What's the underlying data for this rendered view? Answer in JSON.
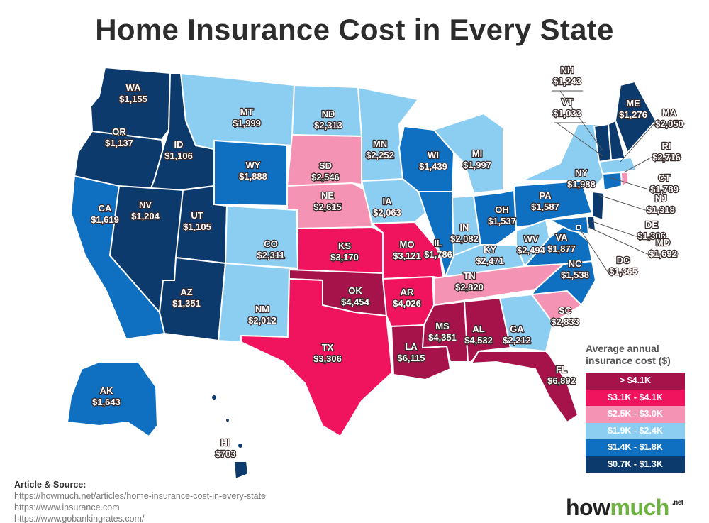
{
  "title": "Home Insurance Cost in Every State",
  "legend": {
    "title_line1": "Average annual",
    "title_line2": "insurance cost ($)",
    "items": [
      {
        "label": "> $4.1K",
        "color": "#a6124a"
      },
      {
        "label": "$3.1K - $4.1K",
        "color": "#f0145f"
      },
      {
        "label": "$2.5K - $3.0K",
        "color": "#f493b4"
      },
      {
        "label": "$1.9K - $2.4K",
        "color": "#8ccdf2"
      },
      {
        "label": "$1.4K - $1.8K",
        "color": "#0f6fc0"
      },
      {
        "label": "$0.7K - $1.3K",
        "color": "#0c3a6d"
      }
    ]
  },
  "source": {
    "heading": "Article & Source:",
    "links": [
      "https://howmuch.net/articles/home-insurance-cost-in-every-state",
      "https://www.insurance.com",
      "https://www.gobankingrates.com/"
    ]
  },
  "logo": {
    "how": "how",
    "much": "much",
    "net": ".net"
  },
  "chart_data": {
    "type": "choropleth",
    "title": "Home Insurance Cost in Every State",
    "legend_title": "Average annual insurance cost ($)",
    "bins": [
      {
        "label": "> $4.1K",
        "min": 4100,
        "color": "#a6124a"
      },
      {
        "label": "$3.1K - $4.1K",
        "min": 3100,
        "max": 4100,
        "color": "#f0145f"
      },
      {
        "label": "$2.5K - $3.0K",
        "min": 2500,
        "max": 3000,
        "color": "#f493b4"
      },
      {
        "label": "$1.9K - $2.4K",
        "min": 1900,
        "max": 2400,
        "color": "#8ccdf2"
      },
      {
        "label": "$1.4K - $1.8K",
        "min": 1400,
        "max": 1800,
        "color": "#0f6fc0"
      },
      {
        "label": "$0.7K - $1.3K",
        "min": 700,
        "max": 1300,
        "color": "#0c3a6d"
      }
    ],
    "states": [
      {
        "code": "WA",
        "value": 1155,
        "label": "$1,155"
      },
      {
        "code": "OR",
        "value": 1137,
        "label": "$1,137"
      },
      {
        "code": "CA",
        "value": 1619,
        "label": "$1,619"
      },
      {
        "code": "ID",
        "value": 1106,
        "label": "$1,106"
      },
      {
        "code": "NV",
        "value": 1204,
        "label": "$1,204"
      },
      {
        "code": "UT",
        "value": 1105,
        "label": "$1,105"
      },
      {
        "code": "AZ",
        "value": 1351,
        "label": "$1,351"
      },
      {
        "code": "MT",
        "value": 1999,
        "label": "$1,999"
      },
      {
        "code": "WY",
        "value": 1888,
        "label": "$1,888"
      },
      {
        "code": "CO",
        "value": 2311,
        "label": "$2,311"
      },
      {
        "code": "NM",
        "value": 2012,
        "label": "$2,012"
      },
      {
        "code": "ND",
        "value": 2313,
        "label": "$2,313"
      },
      {
        "code": "SD",
        "value": 2546,
        "label": "$2,546"
      },
      {
        "code": "NE",
        "value": 2615,
        "label": "$2,615"
      },
      {
        "code": "KS",
        "value": 3170,
        "label": "$3,170"
      },
      {
        "code": "OK",
        "value": 4454,
        "label": "$4,454"
      },
      {
        "code": "TX",
        "value": 3306,
        "label": "$3,306"
      },
      {
        "code": "MN",
        "value": 2252,
        "label": "$2,252"
      },
      {
        "code": "IA",
        "value": 2063,
        "label": "$2,063"
      },
      {
        "code": "MO",
        "value": 3121,
        "label": "$3,121"
      },
      {
        "code": "AR",
        "value": 4026,
        "label": "$4,026"
      },
      {
        "code": "LA",
        "value": 6115,
        "label": "$6,115"
      },
      {
        "code": "WI",
        "value": 1439,
        "label": "$1,439"
      },
      {
        "code": "IL",
        "value": 1786,
        "label": "$1,786"
      },
      {
        "code": "MI",
        "value": 1997,
        "label": "$1,997"
      },
      {
        "code": "IN",
        "value": 2082,
        "label": "$2,082"
      },
      {
        "code": "OH",
        "value": 1537,
        "label": "$1,537"
      },
      {
        "code": "KY",
        "value": 2471,
        "label": "$2,471"
      },
      {
        "code": "TN",
        "value": 2820,
        "label": "$2,820"
      },
      {
        "code": "MS",
        "value": 4351,
        "label": "$4,351"
      },
      {
        "code": "AL",
        "value": 4532,
        "label": "$4,532"
      },
      {
        "code": "GA",
        "value": 2212,
        "label": "$2,212"
      },
      {
        "code": "FL",
        "value": 6892,
        "label": "$6,892"
      },
      {
        "code": "SC",
        "value": 2833,
        "label": "$2,833"
      },
      {
        "code": "NC",
        "value": 1538,
        "label": "$1,538"
      },
      {
        "code": "VA",
        "value": 1877,
        "label": "$1,877"
      },
      {
        "code": "WV",
        "value": 2494,
        "label": "$2,494"
      },
      {
        "code": "PA",
        "value": 1587,
        "label": "$1,587"
      },
      {
        "code": "NY",
        "value": 1988,
        "label": "$1,988"
      },
      {
        "code": "VT",
        "value": 1033,
        "label": "$1,033"
      },
      {
        "code": "NH",
        "value": 1243,
        "label": "$1,243"
      },
      {
        "code": "ME",
        "value": 1276,
        "label": "$1,276"
      },
      {
        "code": "MA",
        "value": 2050,
        "label": "$2,050"
      },
      {
        "code": "RI",
        "value": 2716,
        "label": "$2,716"
      },
      {
        "code": "CT",
        "value": 1789,
        "label": "$1,789"
      },
      {
        "code": "NJ",
        "value": 1318,
        "label": "$1,318"
      },
      {
        "code": "DE",
        "value": 1306,
        "label": "$1,306"
      },
      {
        "code": "MD",
        "value": 1692,
        "label": "$1,692"
      },
      {
        "code": "DC",
        "value": 1365,
        "label": "$1,365"
      },
      {
        "code": "AK",
        "value": 1643,
        "label": "$1,643"
      },
      {
        "code": "HI",
        "value": 703,
        "label": "$703"
      }
    ]
  }
}
